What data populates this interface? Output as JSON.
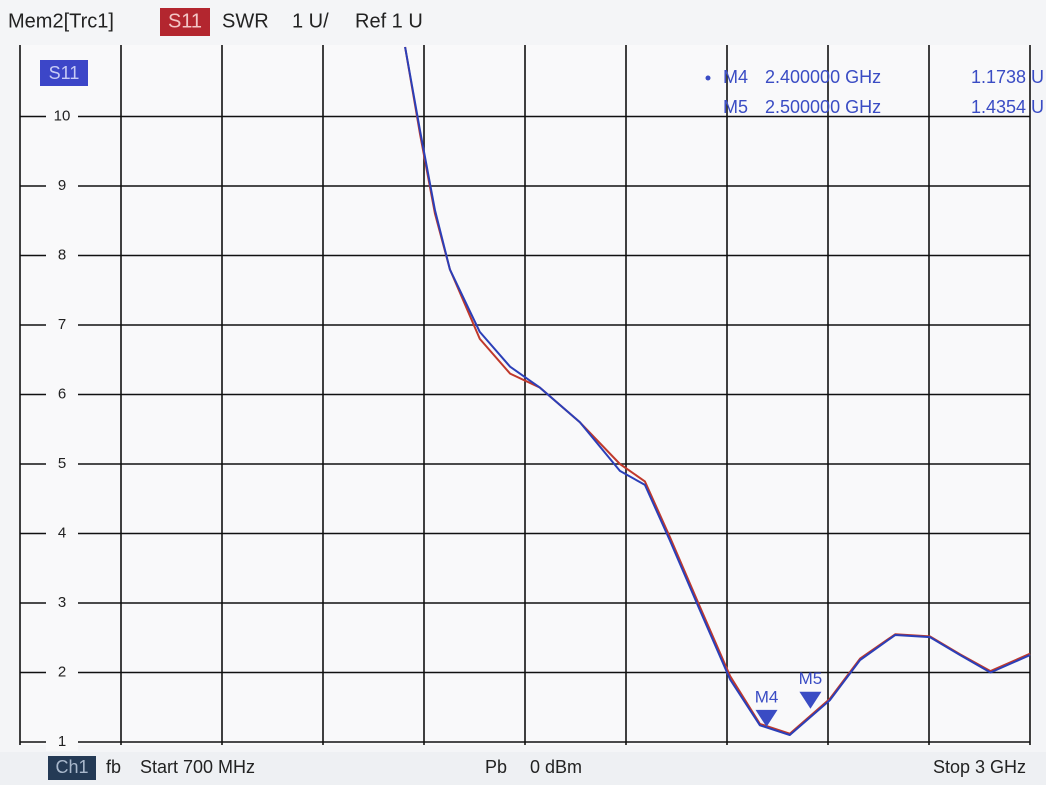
{
  "chart_data": {
    "type": "line",
    "header": {
      "trace": "Mem2[Trc1]",
      "param": "S11",
      "format": "SWR",
      "scale": "1 U/",
      "ref": "Ref 1 U"
    },
    "trace_badge": "S11",
    "footer": {
      "channel": "Ch1",
      "mode": "fb",
      "start": "Start 700 MHz",
      "power_label": "Pb",
      "power": "0 dBm",
      "stop": "Stop 3 GHz"
    },
    "x": [
      1577,
      1611,
      1645,
      1679,
      1747,
      1816,
      1884,
      1975,
      2066,
      2123,
      2180,
      2248,
      2317,
      2385,
      2453,
      2544,
      2613,
      2693,
      2772,
      2841,
      2910,
      3000
    ],
    "series": [
      {
        "color": "#c0392b",
        "values": [
          11.0,
          9.75,
          8.6,
          7.8,
          6.8,
          6.3,
          6.1,
          5.6,
          5.0,
          4.75,
          3.95,
          2.95,
          1.95,
          1.26,
          1.12,
          1.62,
          2.2,
          2.55,
          2.52,
          2.26,
          2.02,
          2.27
        ]
      },
      {
        "color": "#2b3fb8",
        "values": [
          11.0,
          9.8,
          8.65,
          7.8,
          6.9,
          6.4,
          6.1,
          5.6,
          4.9,
          4.7,
          3.9,
          2.9,
          1.9,
          1.24,
          1.1,
          1.6,
          2.18,
          2.54,
          2.51,
          2.25,
          2.0,
          2.25
        ]
      }
    ],
    "xlim": [
      700,
      3000
    ],
    "x_divisions": 10,
    "ylim": [
      1,
      11
    ],
    "yticks": [
      1,
      2,
      3,
      4,
      5,
      6,
      7,
      8,
      9,
      10
    ],
    "markers": [
      {
        "label": "M4",
        "freq": "2.400000 GHz",
        "value_label": "1.1738 U",
        "x": 2400,
        "value": 1.1738
      },
      {
        "label": "M5",
        "freq": "2.500000 GHz",
        "value_label": "1.4354 U",
        "x": 2500,
        "value": 1.4354
      }
    ],
    "grid": true
  }
}
